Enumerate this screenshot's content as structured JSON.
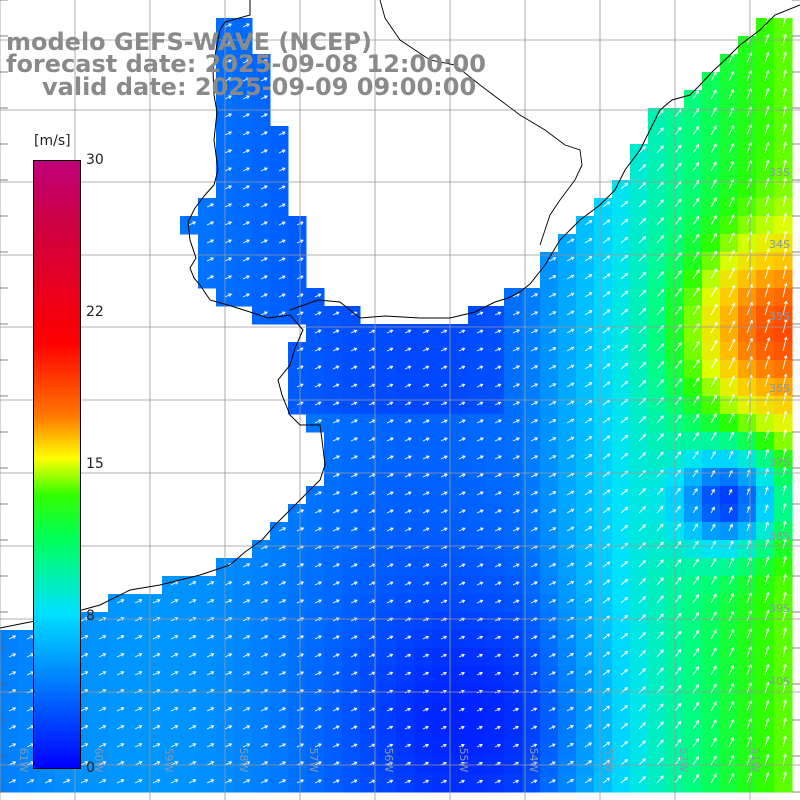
{
  "title": {
    "line1": "modelo GEFS-WAVE (NCEP)",
    "line2": "forecast date: 2025-09-08 12:00:00",
    "line3": "valid date: 2025-09-09 09:00:00"
  },
  "colorbar": {
    "unit": "[m/s]",
    "ticks": [
      {
        "label": "30",
        "value": 30
      },
      {
        "label": "22",
        "value": 22
      },
      {
        "label": "15",
        "value": 15
      },
      {
        "label": "8",
        "value": 8
      },
      {
        "label": "0",
        "value": 0
      }
    ],
    "min": 0,
    "max": 30
  },
  "map": {
    "lat_labels": [
      "33S",
      "34S",
      "35S",
      "36S",
      "37S",
      "38S",
      "39S",
      "40S"
    ],
    "lon_labels": [
      "61W",
      "60W",
      "59W",
      "58W",
      "57W",
      "56W",
      "55W",
      "54W",
      "53W",
      "52W",
      "51W"
    ],
    "coastline_color": "#000000",
    "grid_color": "#999999",
    "land_color": "#ffffff",
    "arrow_color": "#ffffff",
    "variable": "wind speed",
    "wind_max_region": "35S 51W",
    "wind_max_approx": 20
  }
}
